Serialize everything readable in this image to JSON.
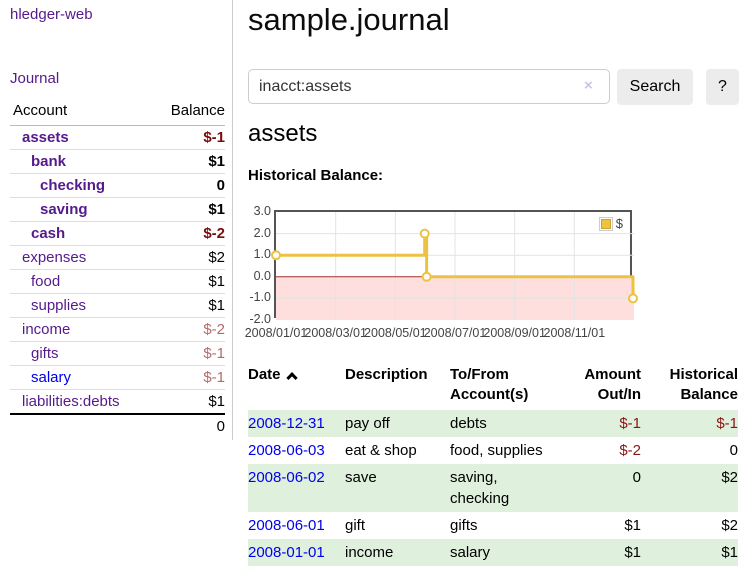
{
  "colors": {
    "link_purple": "#551a8b",
    "link_blue": "#0000ee",
    "negative": "#8b1515",
    "negative_strong": "#7b0c0c",
    "negative_muted": "#b26b6b",
    "row_green": "#dff0dc",
    "series_yellow": "#edc240"
  },
  "sidebar": {
    "brand": "hledger-web",
    "nav": {
      "journal": "Journal"
    },
    "accounts": {
      "headers": {
        "account": "Account",
        "balance": "Balance"
      },
      "rows": [
        {
          "name": "assets",
          "balance": "$-1"
        },
        {
          "name": "bank",
          "balance": "$1"
        },
        {
          "name": "checking",
          "balance": "0"
        },
        {
          "name": "saving",
          "balance": "$1"
        },
        {
          "name": "cash",
          "balance": "$-2"
        },
        {
          "name": "expenses",
          "balance": "$2"
        },
        {
          "name": "food",
          "balance": "$1"
        },
        {
          "name": "supplies",
          "balance": "$1"
        },
        {
          "name": "income",
          "balance": "$-2"
        },
        {
          "name": "gifts",
          "balance": "$-1"
        },
        {
          "name": "salary",
          "balance": "$-1"
        },
        {
          "name": "liabilities:debts",
          "balance": "$1"
        }
      ],
      "total": "0"
    }
  },
  "main": {
    "title": "sample.journal",
    "search": {
      "value": "inacct:assets",
      "clear_icon": "×",
      "button": "Search",
      "help": "?"
    },
    "account_heading": "assets",
    "chart_title": "Historical Balance:"
  },
  "chart_data": {
    "type": "line",
    "step": true,
    "title": "Historical Balance:",
    "series": [
      {
        "name": "$",
        "color": "#edc240",
        "points": [
          [
            "2008-01-01",
            1
          ],
          [
            "2008-06-01",
            2
          ],
          [
            "2008-06-03",
            0
          ],
          [
            "2008-12-31",
            -1
          ]
        ]
      }
    ],
    "x_range": [
      "2008-01-01",
      "2009-01-01"
    ],
    "x_ticks": [
      "2008/01/01",
      "2008/03/01",
      "2008/05/01",
      "2008/07/01",
      "2008/09/01",
      "2008/11/01"
    ],
    "y_range": [
      -2,
      3
    ],
    "y_ticks": [
      "3.0",
      "2.0",
      "1.0",
      "0.0",
      "-1.0",
      "-2.0"
    ],
    "legend": {
      "label": "$",
      "position": "top-right"
    },
    "grid": true,
    "zero_line_color": "#a03030",
    "negative_region_color": "#ffdede"
  },
  "register": {
    "headers": {
      "date": "Date",
      "description": "Description",
      "accounts": "To/From Account(s)",
      "amount": "Amount Out/In",
      "balance": "Historical Balance"
    },
    "sort": "ascending",
    "rows": [
      {
        "date": "2008-12-31",
        "description": "pay off",
        "accounts": "debts",
        "amount": "$-1",
        "balance": "$-1"
      },
      {
        "date": "2008-06-03",
        "description": "eat & shop",
        "accounts": "food, supplies",
        "amount": "$-2",
        "balance": "0"
      },
      {
        "date": "2008-06-02",
        "description": "save",
        "accounts": "saving, checking",
        "amount": "0",
        "balance": "$2"
      },
      {
        "date": "2008-06-01",
        "description": "gift",
        "accounts": "gifts",
        "amount": "$1",
        "balance": "$2"
      },
      {
        "date": "2008-01-01",
        "description": "income",
        "accounts": "salary",
        "amount": "$1",
        "balance": "$1"
      }
    ]
  }
}
